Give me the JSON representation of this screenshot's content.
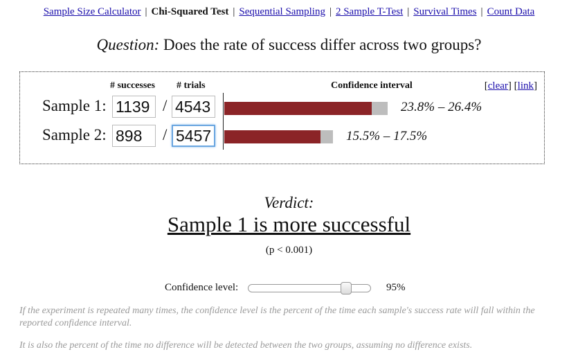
{
  "nav": {
    "items": [
      {
        "label": "Sample Size Calculator",
        "current": false
      },
      {
        "label": "Chi-Squared Test",
        "current": true
      },
      {
        "label": "Sequential Sampling",
        "current": false
      },
      {
        "label": "2 Sample T-Test",
        "current": false
      },
      {
        "label": "Survival Times",
        "current": false
      },
      {
        "label": "Count Data",
        "current": false
      }
    ],
    "separator": "|"
  },
  "question": {
    "prefix": "Question:",
    "text": "Does the rate of success differ across two groups?"
  },
  "table": {
    "col_successes": "# successes",
    "col_trials": "# trials",
    "col_ci": "Confidence interval",
    "link_open": "[",
    "link_close": "]",
    "clear_label": "clear",
    "link_label": "link",
    "slash": "/",
    "samples": [
      {
        "label": "Sample 1:",
        "successes": "1139",
        "trials": "4543",
        "ci_text": "23.8% – 26.4%",
        "ci_low": 0.238,
        "ci_high": 0.264
      },
      {
        "label": "Sample 2:",
        "successes": "898",
        "trials": "5457",
        "ci_text": "15.5% – 17.5%",
        "ci_low": 0.155,
        "ci_high": 0.175
      }
    ]
  },
  "verdict": {
    "title": "Verdict:",
    "result": "Sample 1 is more successful",
    "pvalue": "(p < 0.001)"
  },
  "confidence": {
    "label": "Confidence level:",
    "value_text": "95%",
    "slider_fraction": 0.82
  },
  "notes": [
    "If the experiment is repeated many times, the confidence level is the percent of the time each sample's success rate will fall within the reported confidence interval.",
    "It is also the percent of the time no difference will be detected between the two groups, assuming no difference exists."
  ],
  "colors": {
    "bar_fill": "#8b2427",
    "bar_range": "#bdbdbd",
    "link": "#1a0dab",
    "note_text": "#9a9a9a"
  }
}
